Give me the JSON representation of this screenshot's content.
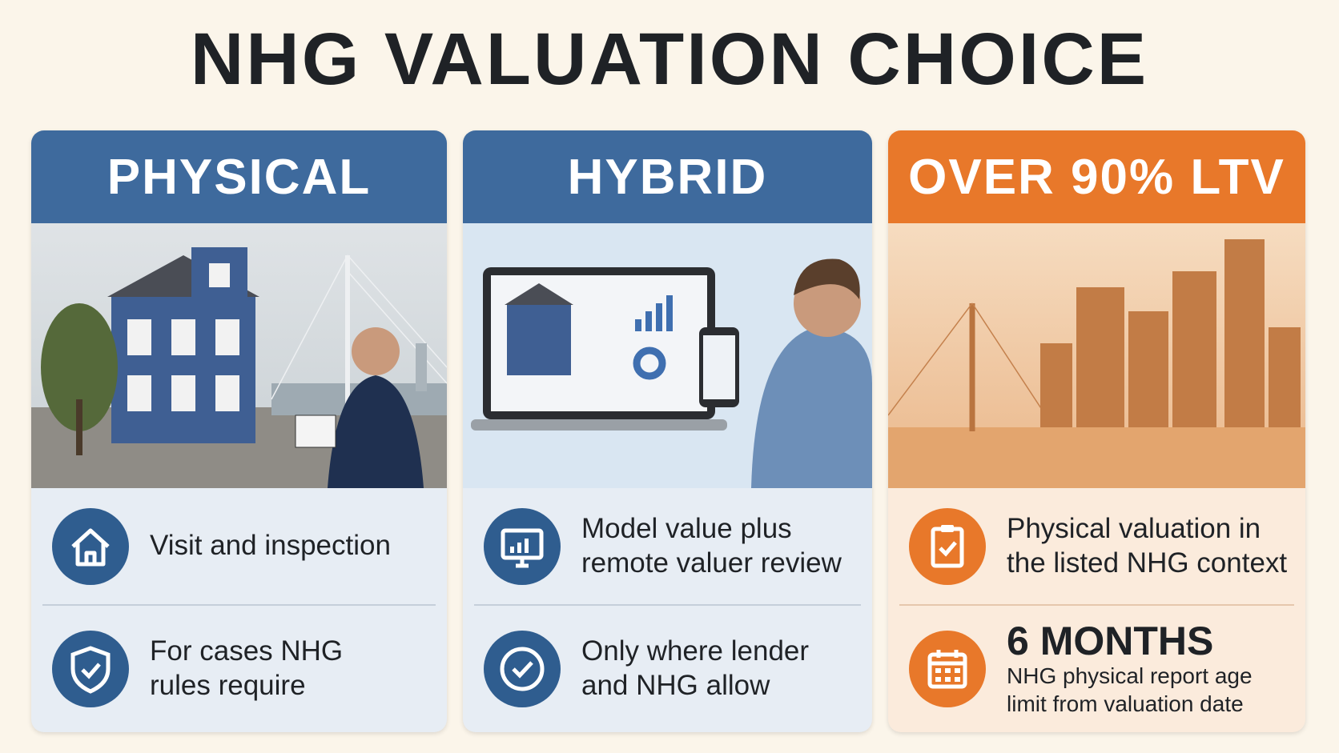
{
  "title": "NHG VALUATION CHOICE",
  "cards": [
    {
      "heading": "PHYSICAL",
      "items": [
        {
          "text": "Visit and inspection"
        },
        {
          "text": "For cases NHG rules require"
        }
      ]
    },
    {
      "heading": "HYBRID",
      "items": [
        {
          "text": "Model value plus remote valuer review"
        },
        {
          "text": "Only where lender and NHG allow"
        }
      ]
    },
    {
      "heading": "OVER 90% LTV",
      "items": [
        {
          "text": "Physical valuation in the listed NHG context"
        },
        {
          "title": "6 MONTHS",
          "text": "NHG physical report age limit from valuation date"
        }
      ]
    }
  ]
}
